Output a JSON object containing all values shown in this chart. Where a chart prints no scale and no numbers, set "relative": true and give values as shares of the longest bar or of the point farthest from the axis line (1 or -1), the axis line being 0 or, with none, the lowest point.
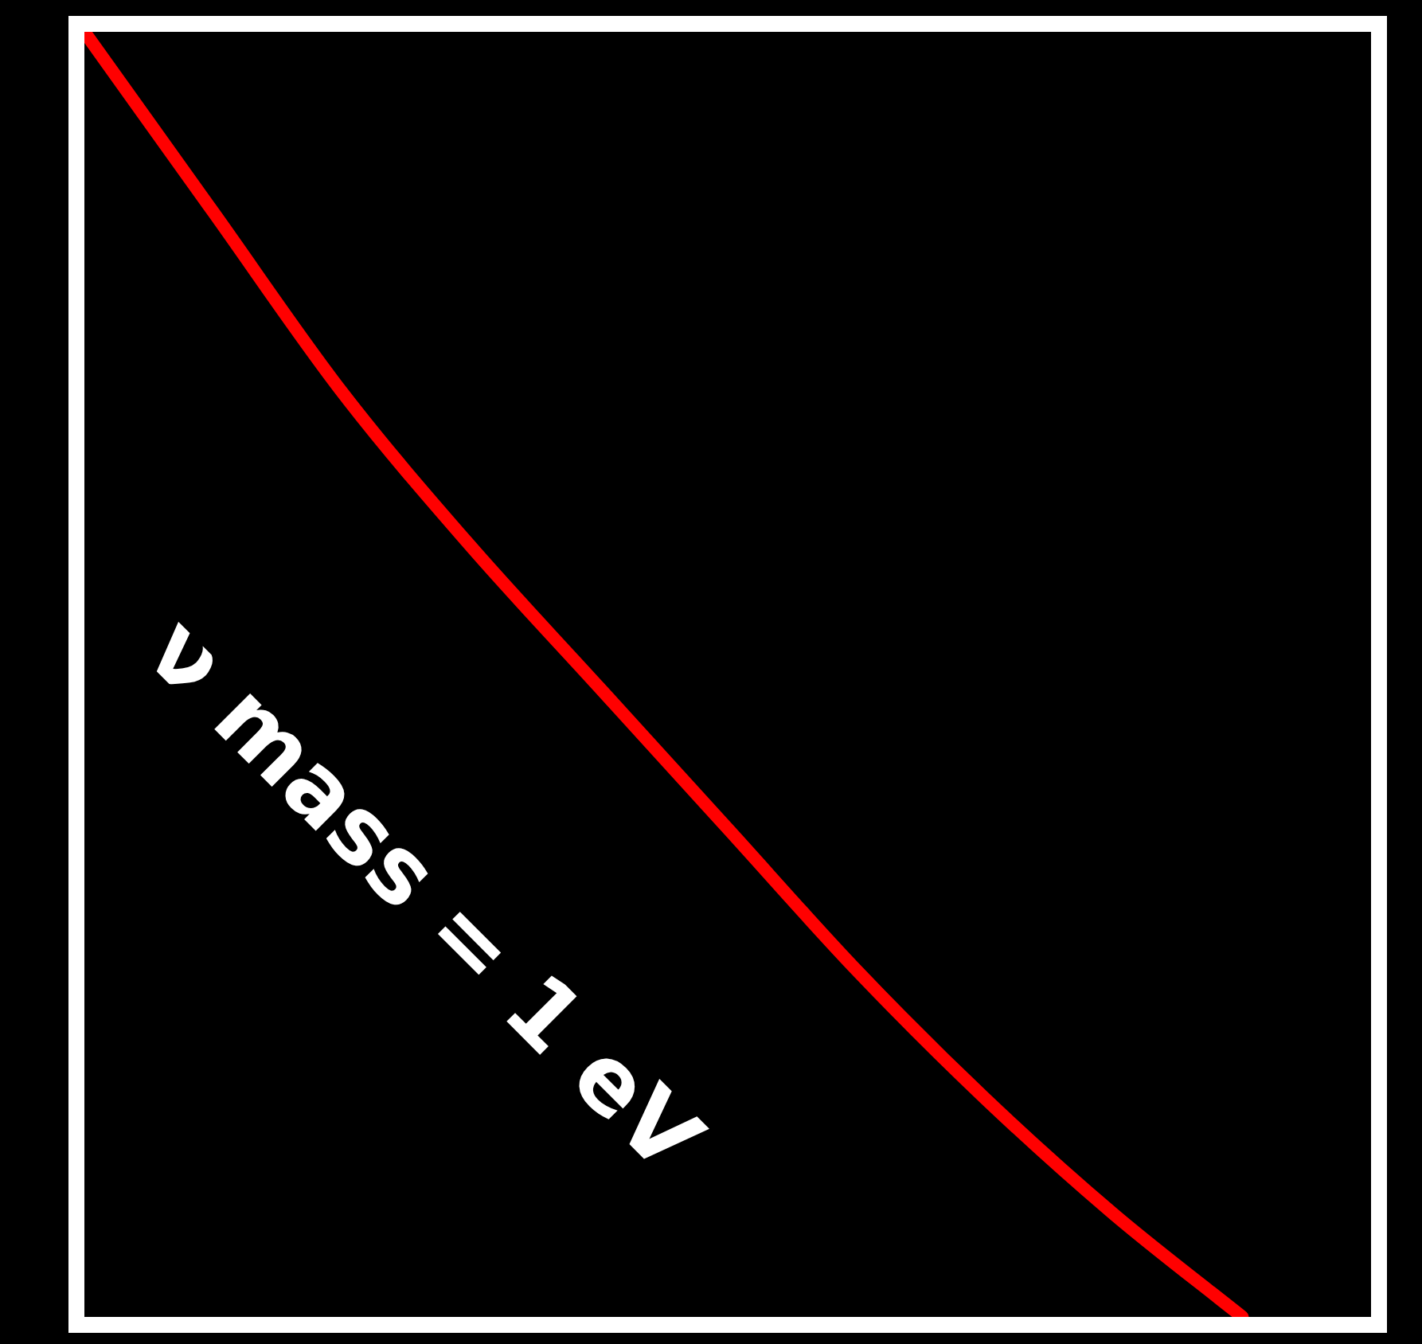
{
  "chart_data": {
    "type": "line",
    "relative": true,
    "marker": "none",
    "annotations": [
      "ν mass = 1 eV"
    ],
    "categories": [
      null,
      null,
      null,
      null,
      null,
      null,
      null,
      null,
      null,
      null,
      null
    ],
    "series": [
      {
        "color": "#ff0000",
        "values": [
          1,
          0.86,
          0.72,
          0.6,
          0.49,
          0.38,
          0.27,
          0.17,
          0.08,
          0,
          null
        ]
      }
    ]
  }
}
